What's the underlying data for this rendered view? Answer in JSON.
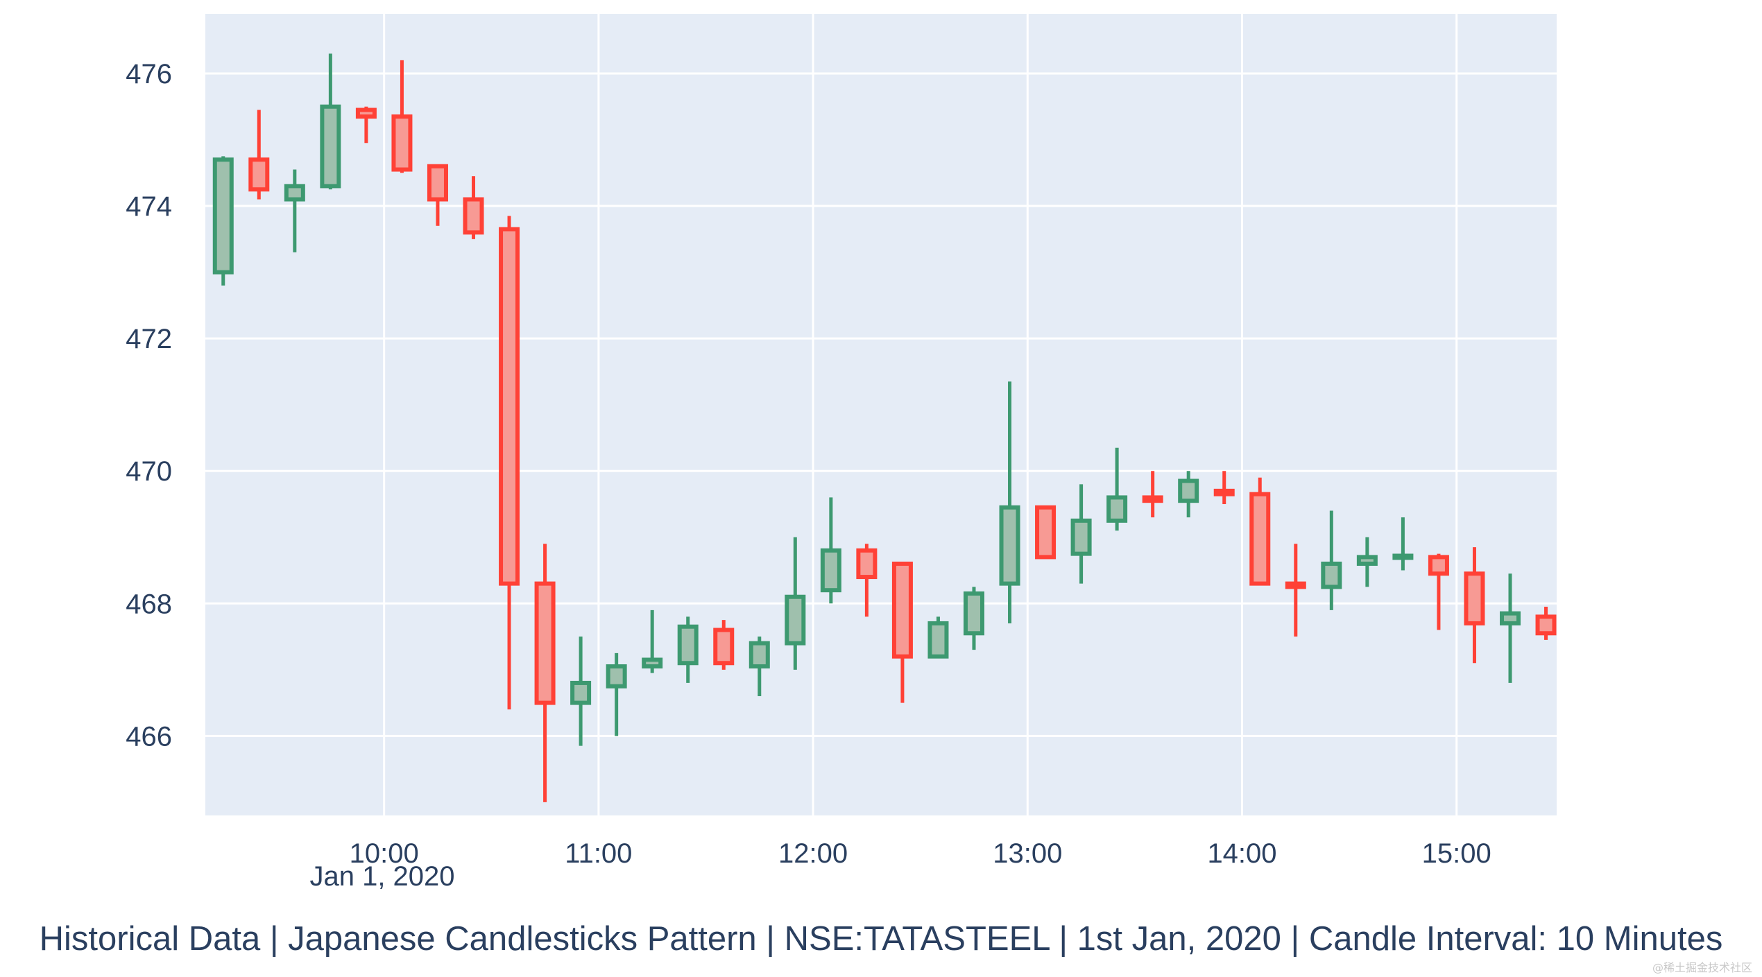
{
  "chart_data": {
    "type": "candlestick",
    "title": "",
    "xlabel": "",
    "ylabel": "",
    "x_start": "2020-01-01 09:15",
    "interval_minutes": 10,
    "x_range": [
      "2020-01-01 09:10",
      "2020-01-01 15:28"
    ],
    "ylim": [
      464.8,
      476.9
    ],
    "y_ticks": [
      466,
      468,
      470,
      472,
      474,
      476
    ],
    "x_ticks": [
      "10:00",
      "11:00",
      "12:00",
      "13:00",
      "14:00",
      "15:00"
    ],
    "x_tick_subtitle": "Jan 1, 2020",
    "grid": true,
    "colors": {
      "increasing": "#3d9970",
      "decreasing": "#ff4136",
      "plot_bg": "#e5ecf6",
      "grid": "#ffffff",
      "text": "#2a3f5f"
    },
    "candles": [
      {
        "time": "09:15",
        "open": 473.0,
        "high": 474.75,
        "low": 472.8,
        "close": 474.7
      },
      {
        "time": "09:25",
        "open": 474.7,
        "high": 475.45,
        "low": 474.1,
        "close": 474.25
      },
      {
        "time": "09:35",
        "open": 474.1,
        "high": 474.55,
        "low": 473.3,
        "close": 474.3
      },
      {
        "time": "09:45",
        "open": 474.3,
        "high": 476.3,
        "low": 474.25,
        "close": 475.5
      },
      {
        "time": "09:55",
        "open": 475.45,
        "high": 475.5,
        "low": 474.95,
        "close": 475.35
      },
      {
        "time": "10:05",
        "open": 475.35,
        "high": 476.2,
        "low": 474.5,
        "close": 474.55
      },
      {
        "time": "10:15",
        "open": 474.6,
        "high": 474.6,
        "low": 473.7,
        "close": 474.1
      },
      {
        "time": "10:25",
        "open": 474.1,
        "high": 474.45,
        "low": 473.5,
        "close": 473.6
      },
      {
        "time": "10:35",
        "open": 473.65,
        "high": 473.85,
        "low": 466.4,
        "close": 468.3
      },
      {
        "time": "10:45",
        "open": 468.3,
        "high": 468.9,
        "low": 465.0,
        "close": 466.5
      },
      {
        "time": "10:55",
        "open": 466.5,
        "high": 467.5,
        "low": 465.85,
        "close": 466.8
      },
      {
        "time": "11:05",
        "open": 466.75,
        "high": 467.25,
        "low": 466.0,
        "close": 467.05
      },
      {
        "time": "11:15",
        "open": 467.05,
        "high": 467.9,
        "low": 466.95,
        "close": 467.15
      },
      {
        "time": "11:25",
        "open": 467.1,
        "high": 467.8,
        "low": 466.8,
        "close": 467.65
      },
      {
        "time": "11:35",
        "open": 467.6,
        "high": 467.75,
        "low": 467.0,
        "close": 467.1
      },
      {
        "time": "11:45",
        "open": 467.05,
        "high": 467.5,
        "low": 466.6,
        "close": 467.4
      },
      {
        "time": "11:55",
        "open": 467.4,
        "high": 469.0,
        "low": 467.0,
        "close": 468.1
      },
      {
        "time": "12:05",
        "open": 468.2,
        "high": 469.6,
        "low": 468.0,
        "close": 468.8
      },
      {
        "time": "12:15",
        "open": 468.8,
        "high": 468.9,
        "low": 467.8,
        "close": 468.4
      },
      {
        "time": "12:25",
        "open": 468.6,
        "high": 468.6,
        "low": 466.5,
        "close": 467.2
      },
      {
        "time": "12:35",
        "open": 467.2,
        "high": 467.8,
        "low": 467.2,
        "close": 467.7
      },
      {
        "time": "12:45",
        "open": 467.55,
        "high": 468.25,
        "low": 467.3,
        "close": 468.15
      },
      {
        "time": "12:55",
        "open": 468.3,
        "high": 471.35,
        "low": 467.7,
        "close": 469.45
      },
      {
        "time": "13:05",
        "open": 469.45,
        "high": 469.45,
        "low": 468.7,
        "close": 468.7
      },
      {
        "time": "13:15",
        "open": 468.75,
        "high": 469.8,
        "low": 468.3,
        "close": 469.25
      },
      {
        "time": "13:25",
        "open": 469.25,
        "high": 470.35,
        "low": 469.1,
        "close": 469.6
      },
      {
        "time": "13:35",
        "open": 469.6,
        "high": 470.0,
        "low": 469.3,
        "close": 469.55
      },
      {
        "time": "13:45",
        "open": 469.55,
        "high": 470.0,
        "low": 469.3,
        "close": 469.85
      },
      {
        "time": "13:55",
        "open": 469.7,
        "high": 470.0,
        "low": 469.5,
        "close": 469.65
      },
      {
        "time": "14:05",
        "open": 469.65,
        "high": 469.9,
        "low": 468.3,
        "close": 468.3
      },
      {
        "time": "14:15",
        "open": 468.3,
        "high": 468.9,
        "low": 467.5,
        "close": 468.25
      },
      {
        "time": "14:25",
        "open": 468.25,
        "high": 469.4,
        "low": 467.9,
        "close": 468.6
      },
      {
        "time": "14:35",
        "open": 468.6,
        "high": 469.0,
        "low": 468.25,
        "close": 468.7
      },
      {
        "time": "14:45",
        "open": 468.7,
        "high": 469.3,
        "low": 468.5,
        "close": 468.72
      },
      {
        "time": "14:55",
        "open": 468.7,
        "high": 468.75,
        "low": 467.6,
        "close": 468.45
      },
      {
        "time": "15:05",
        "open": 468.45,
        "high": 468.85,
        "low": 467.1,
        "close": 467.7
      },
      {
        "time": "15:15",
        "open": 467.7,
        "high": 468.45,
        "low": 466.8,
        "close": 467.85
      },
      {
        "time": "15:25",
        "open": 467.8,
        "high": 467.95,
        "low": 467.45,
        "close": 467.55
      }
    ]
  },
  "caption": "Historical Data | Japanese Candlesticks Pattern | NSE:TATASTEEL | 1st Jan, 2020 | Candle Interval: 10 Minutes",
  "watermark": "@稀土掘金技术社区"
}
